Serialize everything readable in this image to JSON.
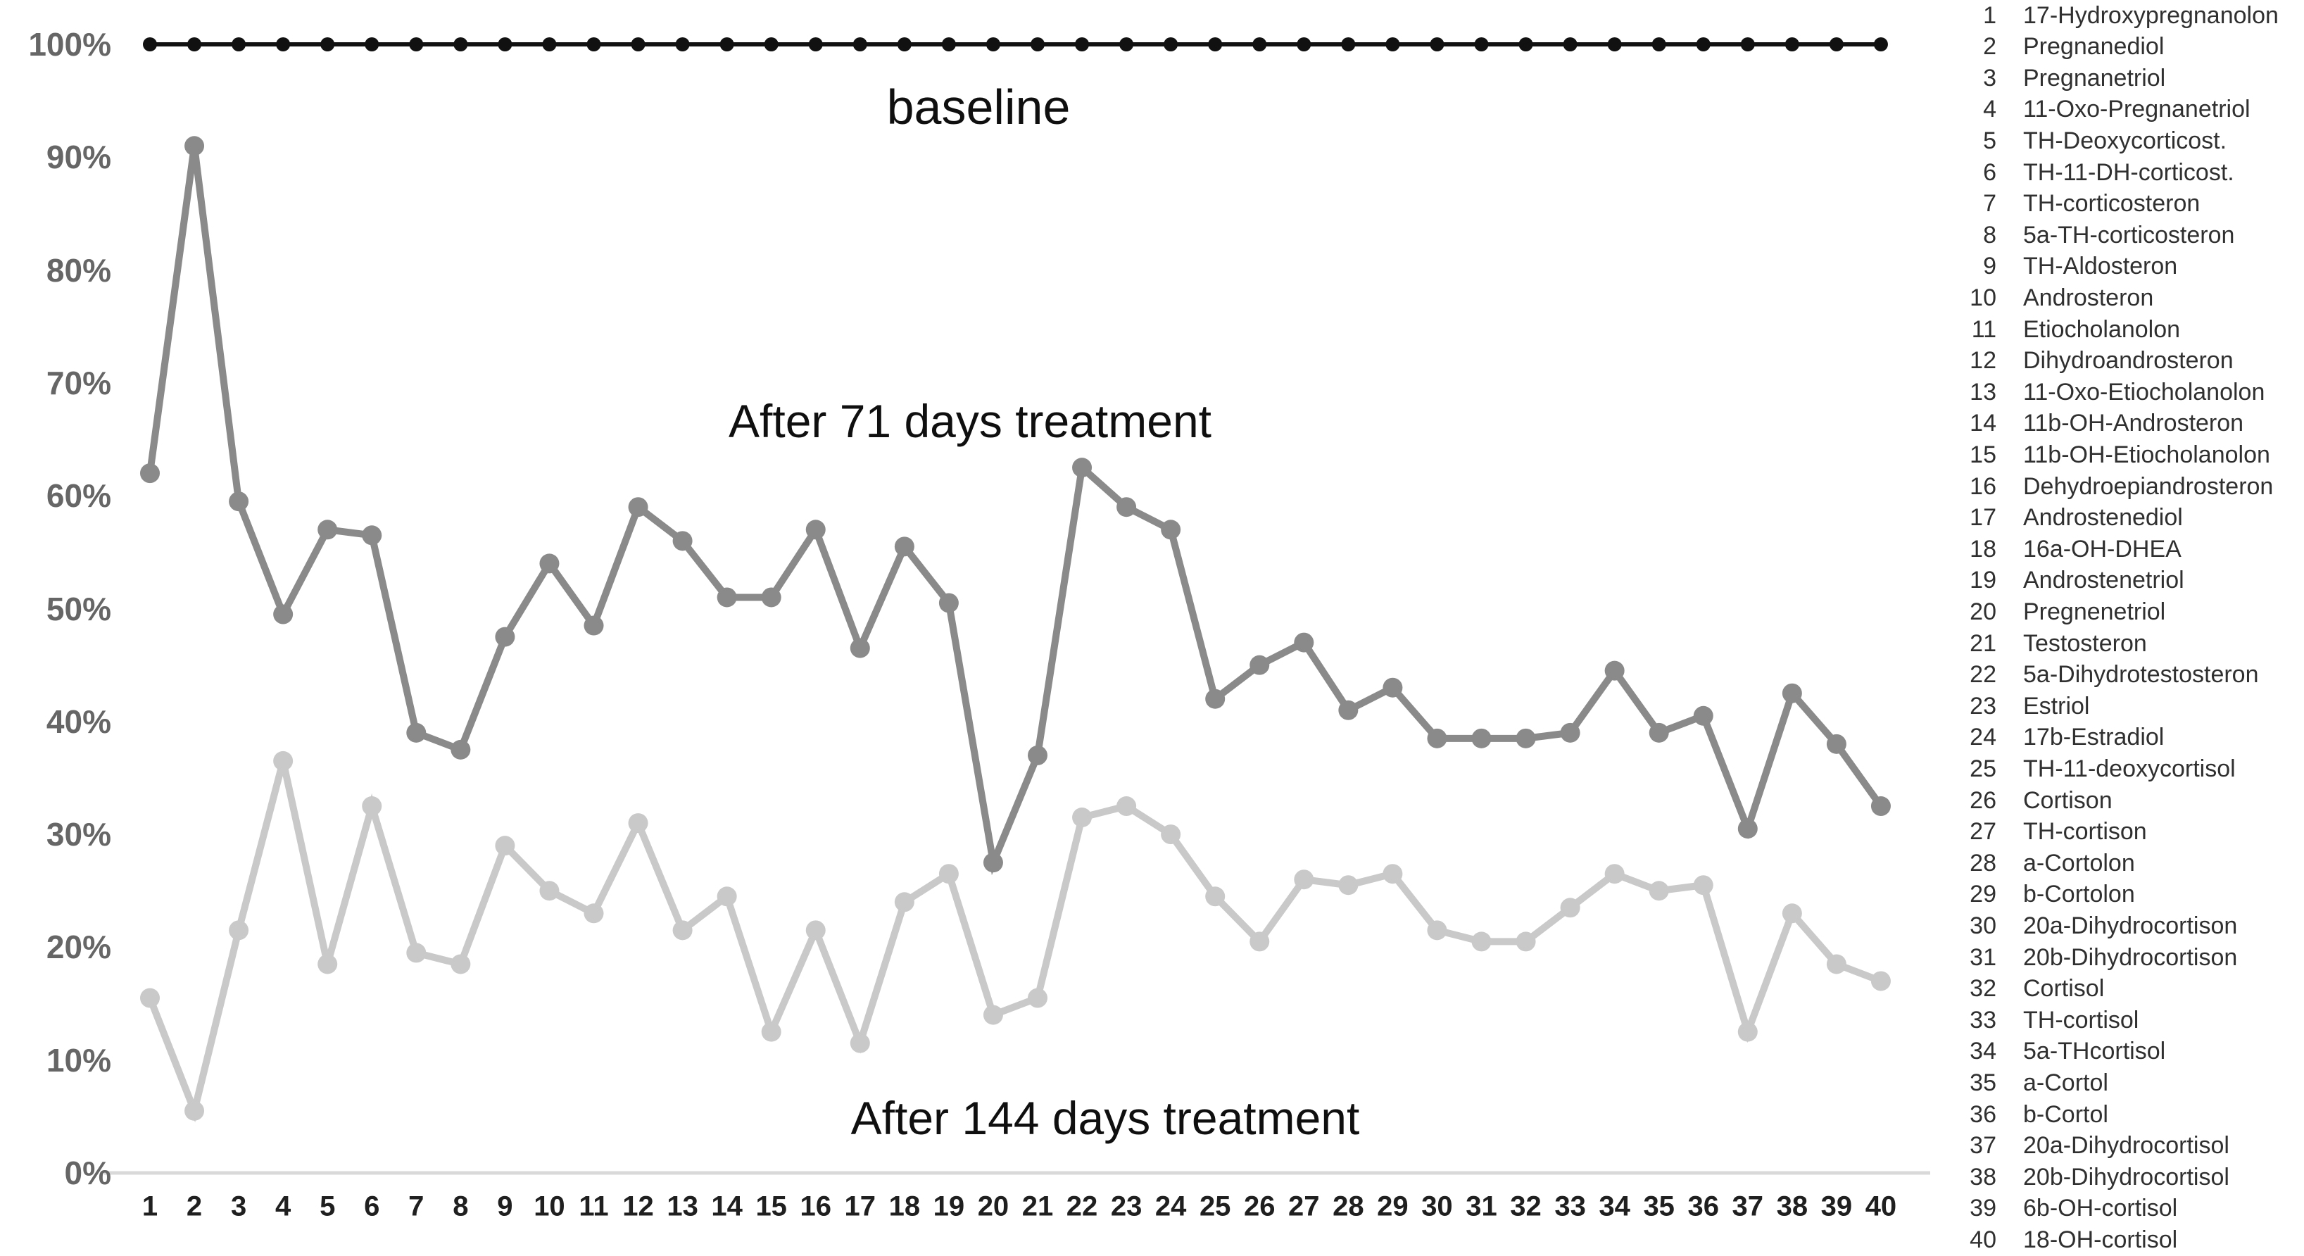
{
  "chart_data": {
    "type": "line",
    "x": [
      1,
      2,
      3,
      4,
      5,
      6,
      7,
      8,
      9,
      10,
      11,
      12,
      13,
      14,
      15,
      16,
      17,
      18,
      19,
      20,
      21,
      22,
      23,
      24,
      25,
      26,
      27,
      28,
      29,
      30,
      31,
      32,
      33,
      34,
      35,
      36,
      37,
      38,
      39,
      40
    ],
    "series": [
      {
        "name": "baseline",
        "color": "#111111",
        "dot_radius": 10,
        "line_width": 6,
        "values": [
          100,
          100,
          100,
          100,
          100,
          100,
          100,
          100,
          100,
          100,
          100,
          100,
          100,
          100,
          100,
          100,
          100,
          100,
          100,
          100,
          100,
          100,
          100,
          100,
          100,
          100,
          100,
          100,
          100,
          100,
          100,
          100,
          100,
          100,
          100,
          100,
          100,
          100,
          100,
          100
        ]
      },
      {
        "name": "After 71 days treatment",
        "color": "#8a8a8a",
        "dot_radius": 14,
        "line_width": 10,
        "values": [
          62,
          91,
          59.5,
          49.5,
          57,
          56.5,
          39,
          37.5,
          47.5,
          54,
          48.5,
          59,
          56,
          51,
          51,
          57,
          46.5,
          55.5,
          50.5,
          27.5,
          37,
          62.5,
          59,
          57,
          42,
          45,
          47,
          41,
          43,
          38.5,
          38.5,
          38.5,
          39,
          44.5,
          39,
          40.5,
          30.5,
          42.5,
          38,
          32.5
        ]
      },
      {
        "name": "After 144 days treatment",
        "color": "#c9c9c9",
        "dot_radius": 14,
        "line_width": 10,
        "values": [
          15.5,
          5.5,
          21.5,
          36.5,
          18.5,
          32.5,
          19.5,
          18.5,
          29,
          25,
          23,
          31,
          21.5,
          24.5,
          12.5,
          21.5,
          11.5,
          24,
          26.5,
          14,
          15.5,
          31.5,
          32.5,
          30,
          24.5,
          20.5,
          26,
          25.5,
          26.5,
          21.5,
          20.5,
          20.5,
          23.5,
          26.5,
          25,
          25.5,
          12.5,
          23,
          18.5,
          17
        ]
      }
    ],
    "title": "",
    "xlabel": "",
    "ylabel": "",
    "ylim": [
      0,
      100
    ],
    "grid": false,
    "legend_position": "right",
    "y_tick_labels": [
      "100%",
      "90%",
      "80%",
      "70%",
      "60%",
      "50%",
      "40%",
      "30%",
      "20%",
      "10%",
      "0%"
    ],
    "x_tick_labels": [
      "1",
      "2",
      "3",
      "4",
      "5",
      "6",
      "7",
      "8",
      "9",
      "10",
      "11",
      "12",
      "13",
      "14",
      "15",
      "16",
      "17",
      "18",
      "19",
      "20",
      "21",
      "22",
      "23",
      "24",
      "25",
      "26",
      "27",
      "28",
      "29",
      "30",
      "31",
      "32",
      "33",
      "34",
      "35",
      "36",
      "37",
      "38",
      "39",
      "40"
    ]
  },
  "annotations": {
    "baseline_label": "baseline",
    "after71_label": "After 71 days treatment",
    "after144_label": "After 144 days treatment"
  },
  "axis": {
    "zero_line_color": "#d9d9d9"
  },
  "legend": {
    "items": [
      {
        "num": "1",
        "name": "17-Hydroxypregnanolon"
      },
      {
        "num": "2",
        "name": "Pregnanediol"
      },
      {
        "num": "3",
        "name": "Pregnanetriol"
      },
      {
        "num": "4",
        "name": "11-Oxo-Pregnanetriol"
      },
      {
        "num": "5",
        "name": "TH-Deoxycorticost."
      },
      {
        "num": "6",
        "name": "TH-11-DH-corticost."
      },
      {
        "num": "7",
        "name": "TH-corticosteron"
      },
      {
        "num": "8",
        "name": "5a-TH-corticosteron"
      },
      {
        "num": "9",
        "name": "TH-Aldosteron"
      },
      {
        "num": "10",
        "name": "Androsteron"
      },
      {
        "num": "11",
        "name": "Etiocholanolon"
      },
      {
        "num": "12",
        "name": "Dihydroandrosteron"
      },
      {
        "num": "13",
        "name": "11-Oxo-Etiocholanolon"
      },
      {
        "num": "14",
        "name": "11b-OH-Androsteron"
      },
      {
        "num": "15",
        "name": "11b-OH-Etiocholanolon"
      },
      {
        "num": "16",
        "name": "Dehydroepiandrosteron"
      },
      {
        "num": "17",
        "name": "Androstenediol"
      },
      {
        "num": "18",
        "name": "16a-OH-DHEA"
      },
      {
        "num": "19",
        "name": "Androstenetriol"
      },
      {
        "num": "20",
        "name": "Pregnenetriol"
      },
      {
        "num": "21",
        "name": "Testosteron"
      },
      {
        "num": "22",
        "name": "5a-Dihydrotestosteron"
      },
      {
        "num": "23",
        "name": "Estriol"
      },
      {
        "num": "24",
        "name": "17b-Estradiol"
      },
      {
        "num": "25",
        "name": "TH-11-deoxycortisol"
      },
      {
        "num": "26",
        "name": "Cortison"
      },
      {
        "num": "27",
        "name": "TH-cortison"
      },
      {
        "num": "28",
        "name": "a-Cortolon"
      },
      {
        "num": "29",
        "name": "b-Cortolon"
      },
      {
        "num": "30",
        "name": "20a-Dihydrocortison"
      },
      {
        "num": "31",
        "name": "20b-Dihydrocortison"
      },
      {
        "num": "32",
        "name": "Cortisol"
      },
      {
        "num": "33",
        "name": "TH-cortisol"
      },
      {
        "num": "34",
        "name": "5a-THcortisol"
      },
      {
        "num": "35",
        "name": "a-Cortol"
      },
      {
        "num": "36",
        "name": "b-Cortol"
      },
      {
        "num": "37",
        "name": "20a-Dihydrocortisol"
      },
      {
        "num": "38",
        "name": "20b-Dihydrocortisol"
      },
      {
        "num": "39",
        "name": "6b-OH-cortisol"
      },
      {
        "num": "40",
        "name": "18-OH-cortisol"
      }
    ]
  }
}
